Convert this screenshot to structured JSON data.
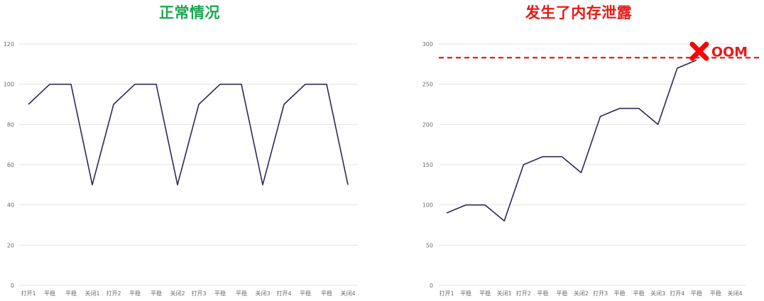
{
  "chart_data": [
    {
      "type": "line",
      "title": "正常情况",
      "title_color": "#1aa84f",
      "line_color": "#2b2a55",
      "categories": [
        "打开1",
        "平稳",
        "平稳",
        "关闭1",
        "打开2",
        "平稳",
        "平稳",
        "关闭2",
        "打开3",
        "平稳",
        "平稳",
        "关闭3",
        "打开4",
        "平稳",
        "平稳",
        "关闭4"
      ],
      "values": [
        90,
        100,
        100,
        50,
        90,
        100,
        100,
        50,
        90,
        100,
        100,
        50,
        90,
        100,
        100,
        50
      ],
      "ylim": [
        0,
        120
      ],
      "yticks": [
        0,
        20,
        40,
        60,
        80,
        100,
        120
      ],
      "xlabel": "",
      "ylabel": "",
      "grid": true,
      "legend": "none"
    },
    {
      "type": "line",
      "title": "发生了内存泄露",
      "title_color": "#e41b17",
      "line_color": "#2b2a55",
      "categories": [
        "打开1",
        "平稳",
        "平稳",
        "关闭1",
        "打开2",
        "平稳",
        "平稳",
        "关闭2",
        "打开3",
        "平稳",
        "平稳",
        "关闭3",
        "打开4",
        "平稳",
        "平稳",
        "关闭4"
      ],
      "values": [
        90,
        100,
        100,
        80,
        150,
        160,
        160,
        140,
        210,
        220,
        220,
        200,
        270,
        280,
        null,
        null
      ],
      "ylim": [
        0,
        300
      ],
      "yticks": [
        0,
        50,
        100,
        150,
        200,
        250,
        300
      ],
      "xlabel": "",
      "ylabel": "",
      "grid": true,
      "legend": "none",
      "annotation": {
        "label": "OOM",
        "threshold": 283,
        "marker": "x-icon",
        "color": "#e41b17"
      }
    }
  ]
}
